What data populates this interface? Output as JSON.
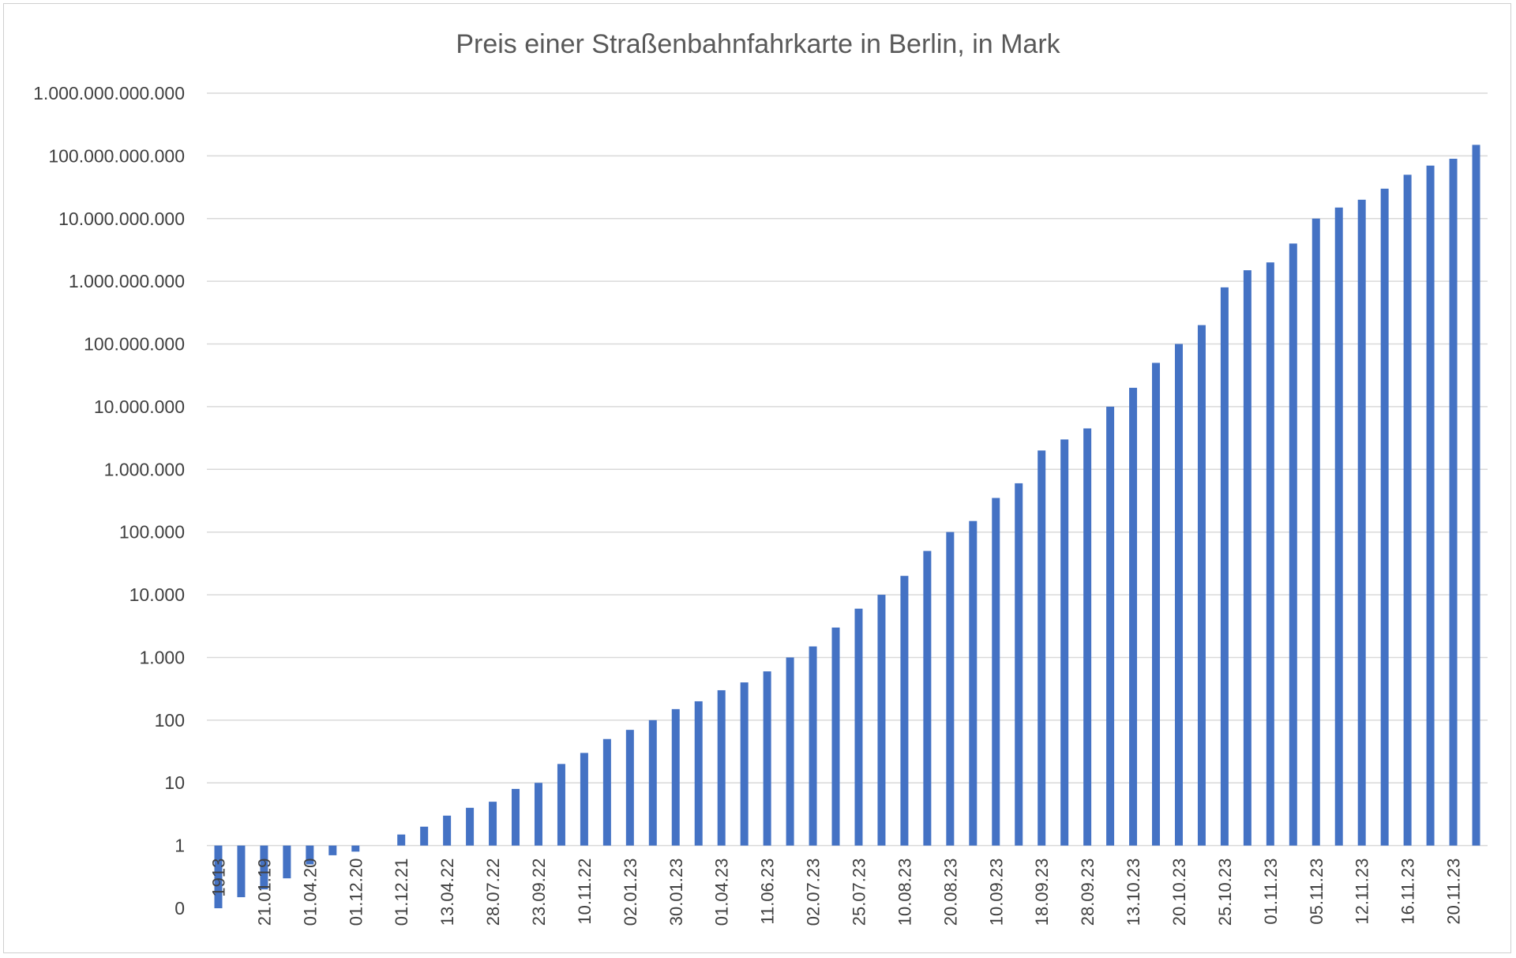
{
  "chart_data": {
    "type": "bar",
    "title": "Preis einer Straßenbahnfahrkarte in Berlin, in Mark",
    "xlabel": "",
    "ylabel": "",
    "yscale": "log",
    "ylim": [
      0.1,
      1000000000000
    ],
    "grid": true,
    "legend": "none",
    "bar_color": "#4472c4",
    "y_tick_labels": [
      "0",
      "1",
      "10",
      "100",
      "1.000",
      "10.000",
      "100.000",
      "1.000.000",
      "10.000.000",
      "100.000.000",
      "1.000.000.000",
      "10.000.000.000",
      "100.000.000.000",
      "1.000.000.000.000"
    ],
    "x_tick_labels": [
      "1913",
      "21.01.19",
      "01.04.20",
      "01.12.20",
      "01.12.21",
      "13.04.22",
      "28.07.22",
      "23.09.22",
      "10.11.22",
      "02.01.23",
      "30.01.23",
      "01.04.23",
      "11.06.23",
      "02.07.23",
      "25.07.23",
      "10.08.23",
      "20.08.23",
      "10.09.23",
      "18.09.23",
      "28.09.23",
      "13.10.23",
      "20.10.23",
      "25.10.23",
      "01.11.23",
      "05.11.23",
      "12.11.23",
      "16.11.23",
      "20.11.23"
    ],
    "values": [
      0.1,
      0.15,
      0.2,
      0.3,
      0.5,
      0.7,
      0.8,
      null,
      1.5,
      2,
      3,
      4,
      5,
      8,
      10,
      20,
      30,
      50,
      70,
      100,
      150,
      200,
      300,
      400,
      600,
      1000,
      1500,
      3000,
      6000,
      10000,
      20000,
      50000,
      100000,
      150000,
      350000,
      600000,
      2000000,
      3000000,
      4500000,
      10000000,
      20000000,
      50000000,
      100000000,
      200000000,
      800000000,
      1500000000,
      2000000000,
      4000000000,
      10000000000,
      15000000000,
      20000000000,
      30000000000,
      50000000000,
      70000000000,
      90000000000,
      150000000000
    ]
  }
}
